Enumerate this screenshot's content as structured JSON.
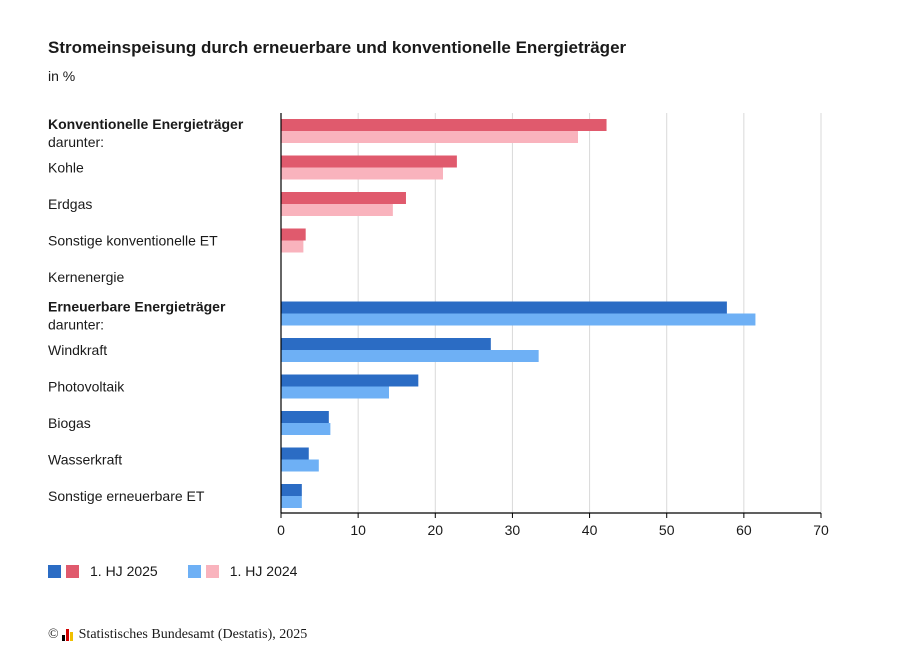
{
  "title": "Stromeinspeisung durch erneuerbare und konventionelle Energieträger",
  "subtitle": "in %",
  "legend": {
    "items": [
      {
        "label": "1. HJ 2025",
        "colors": [
          "#2b6cc4",
          "#e05a6d"
        ]
      },
      {
        "label": "1. HJ 2024",
        "colors": [
          "#6eb0f5",
          "#f9b3bd"
        ]
      }
    ]
  },
  "source": {
    "copyright": "©",
    "text": "Statistisches Bundesamt (Destatis), 2025",
    "logo_colors": [
      "#000000",
      "#d00000",
      "#f0c000"
    ]
  },
  "chart_data": {
    "type": "bar",
    "orientation": "horizontal",
    "xlim": [
      0,
      70
    ],
    "xticks": [
      0,
      10,
      20,
      30,
      40,
      50,
      60,
      70
    ],
    "grid": true,
    "legend_position": "bottom-left",
    "categories": [
      {
        "label": "Konventionelle Energieträger",
        "sub": "darunter:",
        "bold": true,
        "group": "conventional"
      },
      {
        "label": "Kohle",
        "group": "conventional"
      },
      {
        "label": "Erdgas",
        "group": "conventional"
      },
      {
        "label": "Sonstige konventionelle ET",
        "group": "conventional"
      },
      {
        "label": "Kernenergie",
        "group": "conventional"
      },
      {
        "label": "Erneuerbare Energieträger",
        "sub": "darunter:",
        "bold": true,
        "group": "renewable"
      },
      {
        "label": "Windkraft",
        "group": "renewable"
      },
      {
        "label": "Photovoltaik",
        "group": "renewable"
      },
      {
        "label": "Biogas",
        "group": "renewable"
      },
      {
        "label": "Wasserkraft",
        "group": "renewable"
      },
      {
        "label": "Sonstige erneuerbare ET",
        "group": "renewable"
      }
    ],
    "series": [
      {
        "name": "1. HJ 2025",
        "values": [
          42.2,
          22.8,
          16.2,
          3.2,
          0,
          57.8,
          27.2,
          17.8,
          6.2,
          3.6,
          2.7
        ],
        "colors": {
          "conventional": "#e05a6d",
          "renewable": "#2b6cc4"
        }
      },
      {
        "name": "1. HJ 2024",
        "values": [
          38.5,
          21.0,
          14.5,
          2.9,
          0,
          61.5,
          33.4,
          14.0,
          6.4,
          4.9,
          2.7
        ],
        "colors": {
          "conventional": "#f9b3bd",
          "renewable": "#6eb0f5"
        }
      }
    ]
  }
}
